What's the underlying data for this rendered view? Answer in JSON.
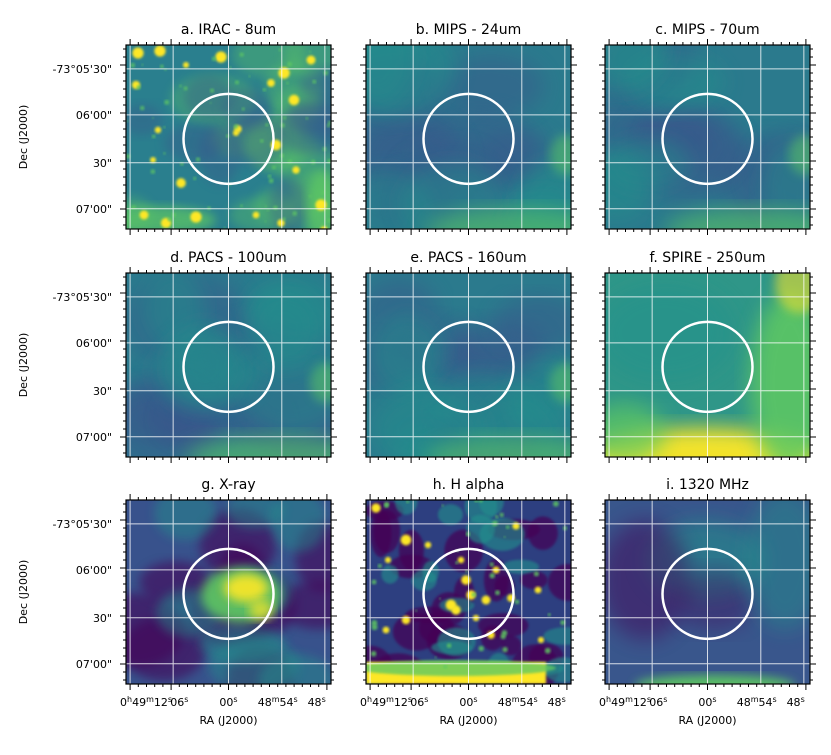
{
  "panels": [
    {
      "title": "a. IRAC - 8um",
      "style": "stars"
    },
    {
      "title": "b. MIPS - 24um",
      "style": "smooth"
    },
    {
      "title": "c. MIPS - 70um",
      "style": "smooth"
    },
    {
      "title": "d. PACS - 100um",
      "style": "smooth"
    },
    {
      "title": "e. PACS - 160um",
      "style": "smooth"
    },
    {
      "title": "f. SPIRE - 250um",
      "style": "bright-corner"
    },
    {
      "title": "g. X-ray",
      "style": "xray"
    },
    {
      "title": "h. H alpha",
      "style": "halpha"
    },
    {
      "title": "i. 1320 MHz",
      "style": "radio"
    }
  ],
  "axes": {
    "ylabel": "Dec (J2000)",
    "xlabel": "RA (J2000)",
    "y_ticks": [
      "-73°05'30\"",
      "06'00\"",
      "30\"",
      "07'00\""
    ],
    "x_tick_first": "0h49m12s",
    "x_tick_labels": [
      "06s",
      "00s",
      "48m54s",
      "48s"
    ]
  },
  "colormap": [
    "#440154",
    "#3b528b",
    "#21918c",
    "#5ec962",
    "#fde725"
  ],
  "chart_data": {
    "type": "heatmap",
    "layout": "3x3 grid of sky image cutouts",
    "ra_ticks": [
      "0h49m12s",
      "06s",
      "00s",
      "48m54s",
      "48s"
    ],
    "dec_ticks": [
      "-73°05'30\"",
      "06'00\"",
      "30\"",
      "07'00\""
    ],
    "grid": true,
    "overlay": "white circular aperture centered near RA 0h49m00s, Dec -73°06'15\""
  }
}
